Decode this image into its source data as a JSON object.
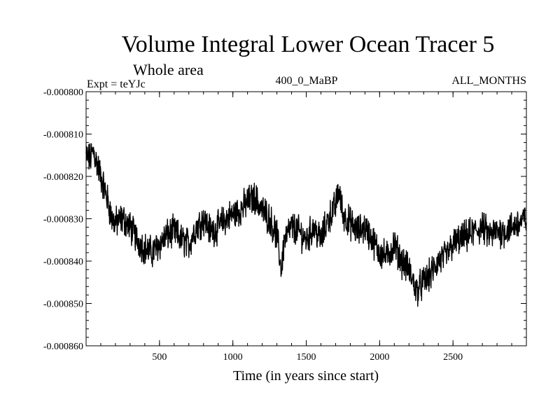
{
  "chart_data": {
    "type": "line",
    "title": "Volume Integral Lower Ocean Tracer 5",
    "subtitle": "Whole area",
    "expt_label": "Expt = teYJc",
    "run_label": "400_0_MaBP",
    "months_label": "ALL_MONTHS",
    "xlabel": "Time (in years since start)",
    "ylabel": "",
    "xlim": [
      0,
      3000
    ],
    "ylim": [
      -0.00086,
      -0.0008
    ],
    "x_ticks": [
      500,
      1000,
      1500,
      2000,
      2500
    ],
    "x_tick_labels": [
      "500",
      "1000",
      "1500",
      "2000",
      "2500"
    ],
    "y_ticks": [
      -0.0008,
      -0.00081,
      -0.00082,
      -0.00083,
      -0.00084,
      -0.00085,
      -0.00086
    ],
    "y_tick_labels": [
      "-0.000800",
      "-0.000810",
      "-0.000820",
      "-0.000830",
      "-0.000840",
      "-0.000850",
      "-0.000860"
    ],
    "series": [
      {
        "name": "Volume Integral Lower Ocean Tracer 5",
        "color": "#000000",
        "x": [
          0,
          25,
          50,
          75,
          100,
          125,
          150,
          175,
          200,
          250,
          300,
          350,
          400,
          450,
          500,
          550,
          600,
          650,
          700,
          750,
          800,
          850,
          900,
          950,
          1000,
          1050,
          1100,
          1150,
          1200,
          1250,
          1300,
          1330,
          1350,
          1400,
          1450,
          1500,
          1550,
          1600,
          1650,
          1700,
          1720,
          1750,
          1800,
          1850,
          1900,
          1950,
          2000,
          2050,
          2100,
          2150,
          2200,
          2250,
          2300,
          2350,
          2400,
          2450,
          2500,
          2550,
          2600,
          2650,
          2700,
          2750,
          2800,
          2850,
          2900,
          2950,
          3000
        ],
        "y": [
          -0.000815,
          -0.000816,
          -0.000814,
          -0.000817,
          -0.00082,
          -0.000823,
          -0.000826,
          -0.00083,
          -0.000831,
          -0.00083,
          -0.000832,
          -0.000835,
          -0.000837,
          -0.000838,
          -0.000836,
          -0.000834,
          -0.000833,
          -0.000835,
          -0.000836,
          -0.000832,
          -0.00083,
          -0.000833,
          -0.000832,
          -0.00083,
          -0.000829,
          -0.000828,
          -0.000826,
          -0.000825,
          -0.000828,
          -0.00083,
          -0.000834,
          -0.000842,
          -0.000835,
          -0.000832,
          -0.000833,
          -0.000835,
          -0.000832,
          -0.000835,
          -0.00083,
          -0.000827,
          -0.000823,
          -0.000829,
          -0.000831,
          -0.000833,
          -0.000832,
          -0.000835,
          -0.000838,
          -0.000839,
          -0.000836,
          -0.00084,
          -0.000842,
          -0.000847,
          -0.000845,
          -0.000843,
          -0.00084,
          -0.000839,
          -0.000836,
          -0.000835,
          -0.000834,
          -0.000833,
          -0.000832,
          -0.000834,
          -0.000833,
          -0.000833,
          -0.000832,
          -0.000831,
          -0.00083
        ]
      }
    ]
  }
}
